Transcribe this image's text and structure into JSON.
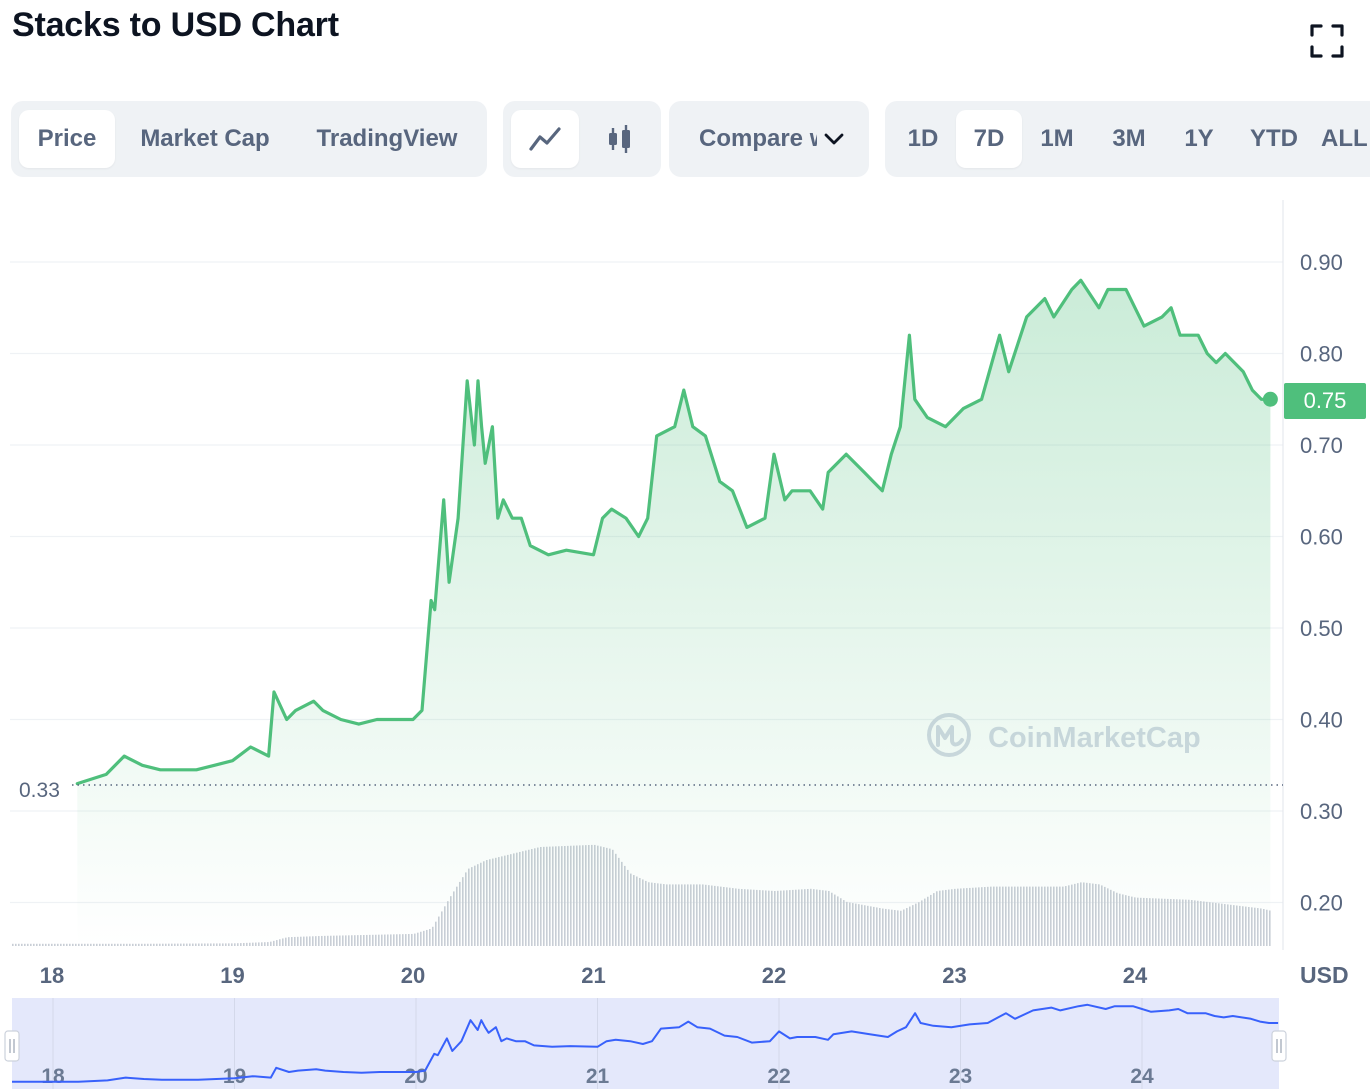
{
  "title": "Stacks to USD Chart",
  "tabs": [
    {
      "label": "Price",
      "active": true
    },
    {
      "label": "Market Cap",
      "active": false
    },
    {
      "label": "TradingView",
      "active": false
    }
  ],
  "chart_types": [
    {
      "icon": "line-chart-icon",
      "active": true
    },
    {
      "icon": "candlestick-icon",
      "active": false
    }
  ],
  "compare": {
    "label": "Compare with",
    "icon": "chevron-down-icon"
  },
  "ranges": [
    {
      "label": "1D",
      "active": false
    },
    {
      "label": "7D",
      "active": true
    },
    {
      "label": "1M",
      "active": false
    },
    {
      "label": "3M",
      "active": false
    },
    {
      "label": "1Y",
      "active": false
    },
    {
      "label": "YTD",
      "active": false
    },
    {
      "label": "ALL",
      "active": false
    }
  ],
  "watermark": "CoinMarketCap",
  "currency": "USD",
  "start_label": "0.33",
  "current_price": "0.75",
  "colors": {
    "line": "#4fbf7c",
    "navigator_line": "#3861fb",
    "navigator_fill": "#e4e8fb",
    "text_muted": "#58667e"
  },
  "chart_data": {
    "type": "area",
    "title": "Stacks to USD Chart",
    "ylabel": "USD",
    "ylim": [
      0.15,
      0.95
    ],
    "yticks": [
      0.2,
      0.3,
      0.4,
      0.5,
      0.6,
      0.7,
      0.8,
      0.9
    ],
    "ytick_labels": [
      "0.20",
      "0.30",
      "0.40",
      "0.50",
      "0.60",
      "0.70",
      "0.80",
      "0.90"
    ],
    "xlim": [
      17.85,
      24.9
    ],
    "xticks": [
      18,
      19,
      20,
      21,
      22,
      23,
      24
    ],
    "xtick_labels": [
      "18",
      "19",
      "20",
      "21",
      "22",
      "23",
      "24"
    ],
    "grid": true,
    "series": [
      {
        "x": [
          18.14,
          18.3,
          18.4,
          18.5,
          18.6,
          18.7,
          18.8,
          18.9,
          19.0,
          19.1,
          19.2,
          19.23,
          19.3,
          19.35,
          19.45,
          19.5,
          19.6,
          19.7,
          19.8,
          19.9,
          20.0,
          20.05,
          20.1,
          20.12,
          20.17,
          20.2,
          20.25,
          20.3,
          20.34,
          20.36,
          20.38,
          20.4,
          20.44,
          20.47,
          20.5,
          20.55,
          20.6,
          20.65,
          20.75,
          20.85,
          21.0,
          21.05,
          21.1,
          21.18,
          21.25,
          21.3,
          21.35,
          21.45,
          21.5,
          21.55,
          21.62,
          21.7,
          21.77,
          21.85,
          21.95,
          22.0,
          22.06,
          22.1,
          22.2,
          22.27,
          22.3,
          22.4,
          22.5,
          22.55,
          22.6,
          22.65,
          22.7,
          22.75,
          22.78,
          22.85,
          22.95,
          23.05,
          23.15,
          23.25,
          23.3,
          23.4,
          23.5,
          23.55,
          23.65,
          23.7,
          23.8,
          23.85,
          23.95,
          24.0,
          24.05,
          24.15,
          24.2,
          24.25,
          24.35,
          24.4,
          24.45,
          24.5,
          24.6,
          24.65,
          24.7,
          24.75
        ],
        "y": [
          0.33,
          0.34,
          0.36,
          0.35,
          0.345,
          0.345,
          0.345,
          0.35,
          0.355,
          0.37,
          0.36,
          0.43,
          0.4,
          0.41,
          0.42,
          0.41,
          0.4,
          0.395,
          0.4,
          0.4,
          0.4,
          0.41,
          0.53,
          0.52,
          0.64,
          0.55,
          0.62,
          0.77,
          0.7,
          0.77,
          0.72,
          0.68,
          0.72,
          0.62,
          0.64,
          0.62,
          0.62,
          0.59,
          0.58,
          0.585,
          0.58,
          0.62,
          0.63,
          0.62,
          0.6,
          0.62,
          0.71,
          0.72,
          0.76,
          0.72,
          0.71,
          0.66,
          0.65,
          0.61,
          0.62,
          0.69,
          0.64,
          0.65,
          0.65,
          0.63,
          0.67,
          0.69,
          0.67,
          0.66,
          0.65,
          0.69,
          0.72,
          0.82,
          0.75,
          0.73,
          0.72,
          0.74,
          0.75,
          0.82,
          0.78,
          0.84,
          0.86,
          0.84,
          0.87,
          0.88,
          0.85,
          0.87,
          0.87,
          0.85,
          0.83,
          0.84,
          0.85,
          0.82,
          0.82,
          0.8,
          0.79,
          0.8,
          0.78,
          0.76,
          0.75,
          0.75
        ]
      }
    ],
    "volume": {
      "x": [
        18.0,
        18.5,
        19.0,
        19.2,
        19.3,
        19.5,
        20.0,
        20.1,
        20.2,
        20.3,
        20.4,
        20.5,
        20.7,
        21.0,
        21.1,
        21.2,
        21.3,
        21.4,
        21.6,
        21.8,
        22.0,
        22.2,
        22.3,
        22.4,
        22.6,
        22.7,
        22.8,
        22.9,
        23.0,
        23.2,
        23.4,
        23.6,
        23.7,
        23.8,
        23.9,
        24.0,
        24.3,
        24.5,
        24.7,
        24.75
      ],
      "y": [
        1,
        1,
        1.2,
        1.8,
        4,
        4.6,
        5.5,
        8,
        22,
        35,
        39,
        41,
        45,
        46,
        44,
        33,
        29,
        28,
        28,
        26,
        25,
        26,
        25,
        20,
        17,
        16,
        20,
        25,
        26,
        27,
        27,
        27,
        29,
        28,
        24,
        22,
        21,
        19,
        17,
        16
      ],
      "ylim": [
        0,
        50
      ]
    },
    "navigator": {
      "xticks": [
        18,
        19,
        20,
        21,
        22,
        23,
        24
      ],
      "xtick_labels": [
        "18",
        "19",
        "20",
        "21",
        "22",
        "23",
        "24"
      ]
    }
  }
}
